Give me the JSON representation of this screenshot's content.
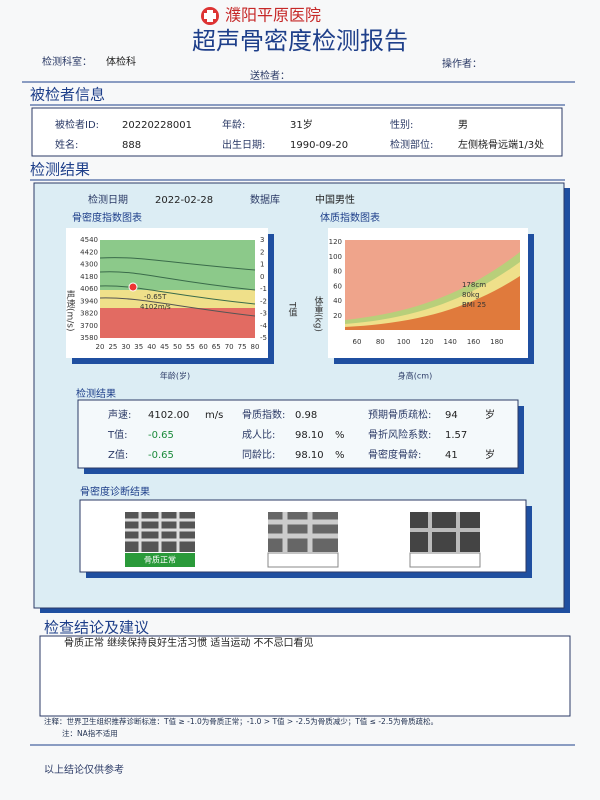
{
  "header": {
    "hospital": "濮阳平原医院",
    "title": "超声骨密度检测报告",
    "dept_label": "检测科室：",
    "dept": "体检科",
    "sender_label": "送检者：",
    "operator_label": "操作者："
  },
  "patient": {
    "heading": "被检者信息",
    "fields": [
      {
        "label": "被检者ID:",
        "value": "20220228001"
      },
      {
        "label": "年龄:",
        "value": "31岁"
      },
      {
        "label": "性别:",
        "value": "男"
      },
      {
        "label": "姓名:",
        "value": "888"
      },
      {
        "label": "出生日期:",
        "value": "1990-09-20"
      },
      {
        "label": "检测部位:",
        "value": "左侧桡骨远端1/3处"
      }
    ]
  },
  "results": {
    "heading": "检测结果",
    "date_label": "检测日期",
    "date": "2022-02-28",
    "db_label": "数据库",
    "db": "中国男性",
    "bmd_chart": {
      "title": "骨密度指数图表",
      "y_label": "声速(m/s)",
      "y2_label": "T值",
      "x_label": "年龄(岁)",
      "yticks": [
        4540,
        4420,
        4300,
        4180,
        4060,
        3940,
        3820,
        3700,
        3580
      ],
      "y2ticks": [
        3,
        2,
        1,
        0,
        -1,
        -2,
        -3,
        -4,
        -5
      ],
      "xticks": [
        20,
        25,
        30,
        35,
        40,
        45,
        50,
        55,
        60,
        65,
        70,
        75,
        80
      ],
      "annotations": [
        "-0.65T",
        "4102m/s"
      ]
    },
    "bmi_chart": {
      "title": "体质指数图表",
      "y_label": "体重(kg)",
      "x_label": "身高(cm)",
      "yticks": [
        120,
        100,
        80,
        60,
        40,
        20
      ],
      "xticks": [
        60,
        80,
        100,
        120,
        140,
        160,
        180
      ],
      "annotations": [
        "178cm",
        "80kg",
        "BMI 25"
      ]
    },
    "measure": {
      "heading": "检测结果",
      "rows": [
        [
          {
            "label": "声速:",
            "value": "4102.00",
            "unit": "m/s"
          },
          {
            "label": "骨质指数:",
            "value": "0.98",
            "unit": ""
          },
          {
            "label": "预期骨质疏松:",
            "value": "94",
            "unit": "岁"
          }
        ],
        [
          {
            "label": "T值:",
            "value": "-0.65",
            "unit": ""
          },
          {
            "label": "成人比:",
            "value": "98.10",
            "unit": "%"
          },
          {
            "label": "骨折风险系数:",
            "value": "1.57",
            "unit": ""
          }
        ],
        [
          {
            "label": "Z值:",
            "value": "-0.65",
            "unit": ""
          },
          {
            "label": "同龄比:",
            "value": "98.10",
            "unit": "%"
          },
          {
            "label": "骨密度骨龄:",
            "value": "41",
            "unit": "岁"
          }
        ]
      ]
    },
    "diagnosis": {
      "heading": "骨密度诊断结果",
      "status": "骨质正常"
    }
  },
  "conclusion": {
    "heading": "检查结论及建议",
    "text": "骨质正常 继续保持良好生活习惯 适当运动 不不忌口看见"
  },
  "notes": [
    "注释：世界卫生组织推荐诊断标准：T值 ≥ -1.0为骨质正常；-1.0 > T值 > -2.5为骨质减少；T值 ≤ -2.5为骨质疏松。",
    "注：NA指不适用"
  ],
  "footer": "以上结论仅供参考"
}
